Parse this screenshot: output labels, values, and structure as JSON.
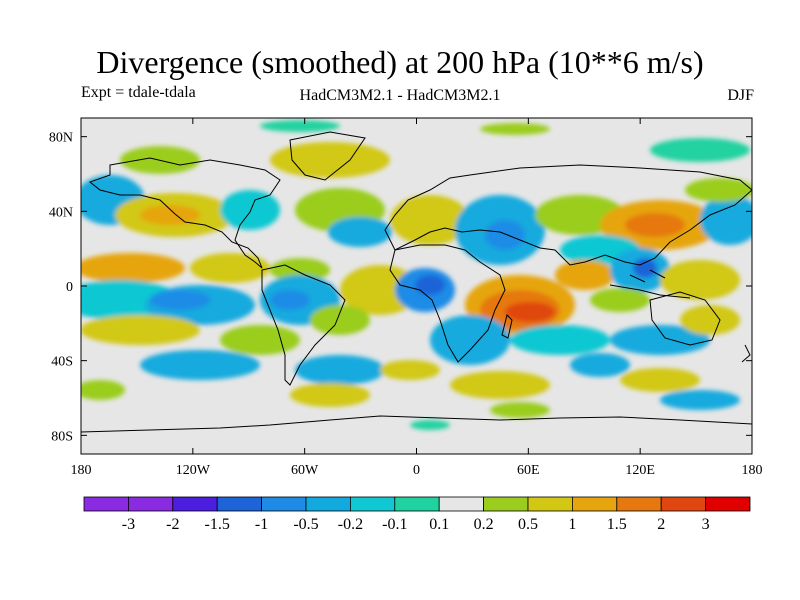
{
  "title": "Divergence (smoothed) at 200 hPa (10**6 m/s)",
  "subtitle_left": "Expt = tdale-tdala",
  "subtitle_center": "HadCM3M2.1 - HadCM3M2.1",
  "subtitle_right": "DJF",
  "lat_labels": [
    "80N",
    "40N",
    "0",
    "40S",
    "80S"
  ],
  "lon_labels": [
    "180",
    "120W",
    "60W",
    "0",
    "60E",
    "120E",
    "180"
  ],
  "colorbar": {
    "labels": [
      "-3",
      "-2",
      "-1.5",
      "-1",
      "-0.5",
      "-0.2",
      "-0.1",
      "0.1",
      "0.2",
      "0.5",
      "1",
      "1.5",
      "2",
      "3"
    ],
    "colors": [
      "#8a2be2",
      "#4b1ee0",
      "#1e64d8",
      "#1e8ce6",
      "#12aade",
      "#10c8d2",
      "#20d2a0",
      "#e6e6e6",
      "#9acd1e",
      "#d2c814",
      "#e6a50f",
      "#e6780f",
      "#e0460f",
      "#e00000"
    ]
  },
  "map": {
    "background": "#e6e6e6",
    "lat_range": [
      -90,
      90
    ],
    "lon_range": [
      -180,
      180
    ]
  }
}
